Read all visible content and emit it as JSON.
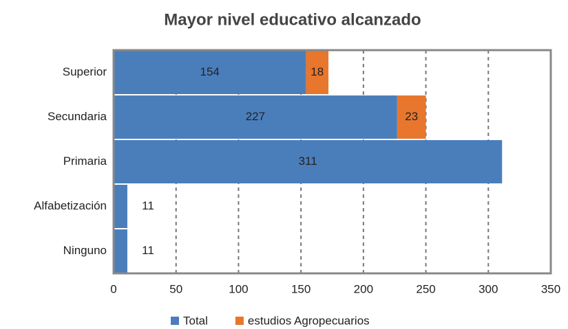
{
  "chart_data": {
    "type": "stacked-barh",
    "title": "Mayor nivel educativo alcanzado",
    "categories": [
      "Superior",
      "Secundaria",
      "Primaria",
      "Alfabetización",
      "Ninguno"
    ],
    "series": [
      {
        "name": "Total",
        "color": "#4a7ebb",
        "values": [
          154,
          227,
          311,
          11,
          11
        ]
      },
      {
        "name": "estudios Agropecuarios",
        "color": "#e8762c",
        "values": [
          18,
          23,
          null,
          null,
          null
        ]
      }
    ],
    "xlim": [
      0,
      350
    ],
    "xticks": [
      0,
      50,
      100,
      150,
      200,
      250,
      300,
      350
    ],
    "grid": true,
    "legend": "bottom"
  }
}
